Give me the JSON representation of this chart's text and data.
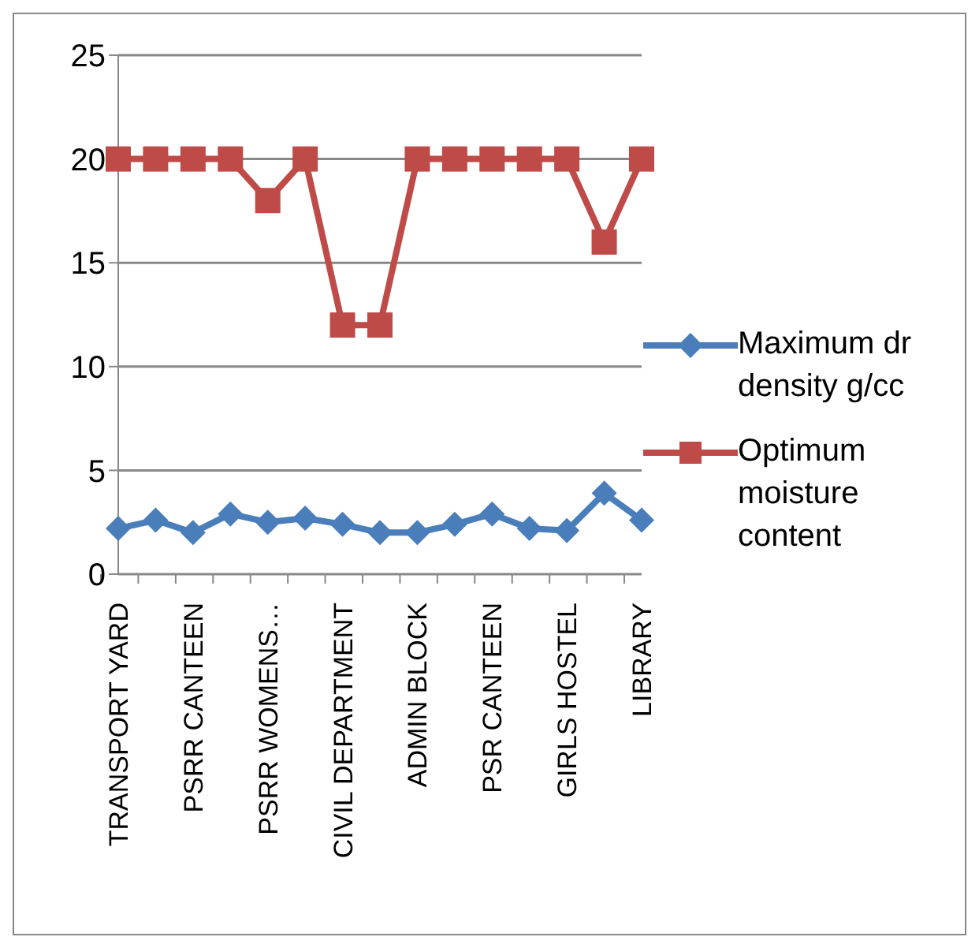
{
  "chart_data": {
    "type": "line",
    "categories": [
      "TRANSPORT YARD",
      null,
      "PSRR CANTEEN",
      null,
      "PSRR WOMENS…",
      null,
      "CIVIL DEPARTMENT",
      null,
      "ADMIN BLOCK",
      null,
      "PSR CANTEEN",
      null,
      "GIRLS HOSTEL",
      null,
      "LIBRARY"
    ],
    "series": [
      {
        "name": "Maximum dr density g/cc",
        "color": "#4a7ebb",
        "marker": "diamond",
        "values": [
          2.2,
          2.6,
          2.0,
          2.9,
          2.5,
          2.7,
          2.4,
          2.0,
          2.0,
          2.4,
          2.9,
          2.2,
          2.1,
          3.9,
          2.6
        ]
      },
      {
        "name": "Optimum moisture content",
        "color": "#be4b48",
        "marker": "square",
        "values": [
          20,
          20,
          20,
          20,
          18,
          20,
          12,
          12,
          20,
          20,
          20,
          20,
          20,
          16,
          20
        ]
      }
    ],
    "ylim": [
      0,
      25
    ],
    "yticks": [
      0,
      5,
      10,
      15,
      20,
      25
    ],
    "grid": "y",
    "legend": "right"
  }
}
